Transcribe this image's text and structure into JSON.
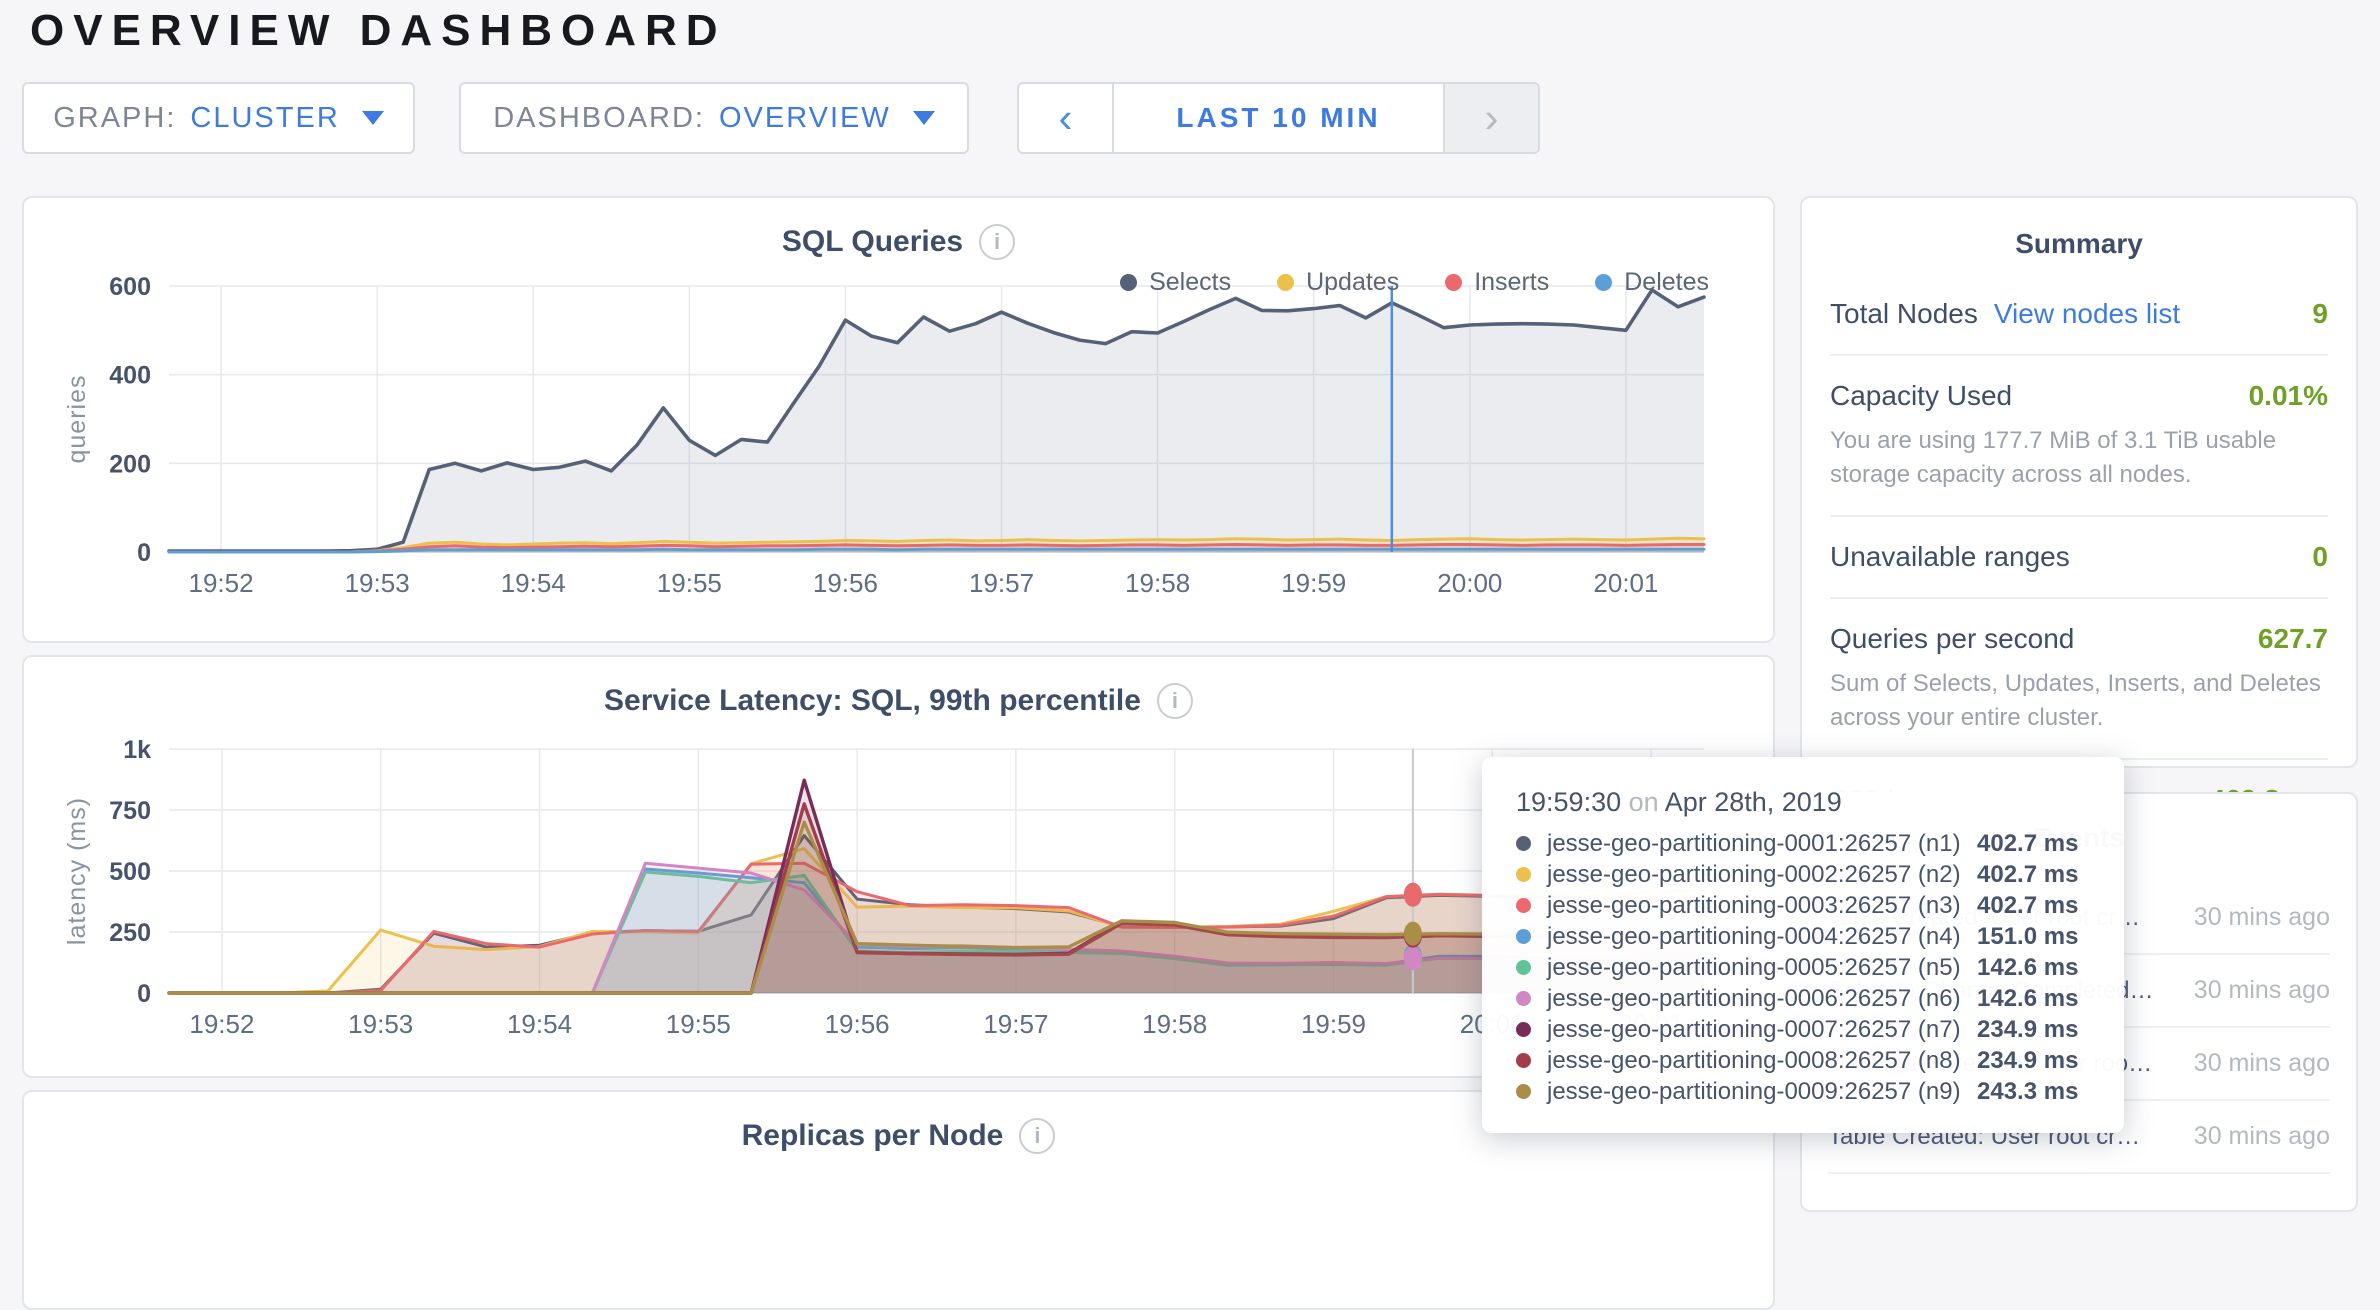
{
  "page": {
    "title": "OVERVIEW DASHBOARD"
  },
  "controls": {
    "graph": {
      "label": "GRAPH:",
      "value": "CLUSTER"
    },
    "dashboard": {
      "label": "DASHBOARD:",
      "value": "OVERVIEW"
    },
    "time_window": {
      "label": "LAST 10 MIN",
      "prev_icon": "‹",
      "next_icon": "›"
    }
  },
  "panels": {
    "sql_queries": {
      "title": "SQL Queries",
      "info_icon": "i",
      "legend": [
        {
          "label": "Selects",
          "color": "#566177"
        },
        {
          "label": "Updates",
          "color": "#ecc04c"
        },
        {
          "label": "Inserts",
          "color": "#e9696e"
        },
        {
          "label": "Deletes",
          "color": "#5c9fd6"
        }
      ]
    },
    "service_latency": {
      "title": "Service Latency: SQL, 99th percentile",
      "info_icon": "i"
    },
    "replicas": {
      "title": "Replicas per Node",
      "info_icon": "i"
    }
  },
  "summary": {
    "title": "Summary",
    "items": [
      {
        "label": "Total Nodes",
        "link": "View nodes list",
        "value": "9"
      },
      {
        "label": "Capacity Used",
        "value": "0.01%",
        "desc": "You are using 177.7 MiB of 3.1 TiB usable storage capacity across all nodes."
      },
      {
        "label": "Unavailable ranges",
        "value": "0"
      },
      {
        "label": "Queries per second",
        "value": "627.7",
        "desc": "Sum of Selects, Updates, Inserts, and Deletes across your entire cluster."
      },
      {
        "label": "P99 latency",
        "value": "469.8 ms"
      }
    ],
    "value_color": "#6ea126",
    "link_color": "#3d7be0"
  },
  "events": {
    "title": "Events",
    "items": [
      {
        "text": "Table Created: User root cr…",
        "time": "30 mins ago"
      },
      {
        "text": "Schema Change Completed…",
        "time": "30 mins ago"
      },
      {
        "text": "Database Created: User root …",
        "time": "30 mins ago"
      },
      {
        "text": "Table Created: User root cr…",
        "time": "30 mins ago"
      }
    ]
  },
  "tooltip": {
    "time": "19:59:30",
    "on": "on",
    "date": "Apr 28th, 2019",
    "rows": [
      {
        "name": "jesse-geo-partitioning-0001:26257 (n1)",
        "value": "402.7 ms",
        "color": "#566177"
      },
      {
        "name": "jesse-geo-partitioning-0002:26257 (n2)",
        "value": "402.7 ms",
        "color": "#ecc04c"
      },
      {
        "name": "jesse-geo-partitioning-0003:26257 (n3)",
        "value": "402.7 ms",
        "color": "#e9696e"
      },
      {
        "name": "jesse-geo-partitioning-0004:26257 (n4)",
        "value": "151.0 ms",
        "color": "#5c9fd6"
      },
      {
        "name": "jesse-geo-partitioning-0005:26257 (n5)",
        "value": "142.6 ms",
        "color": "#5fc598"
      },
      {
        "name": "jesse-geo-partitioning-0006:26257 (n6)",
        "value": "142.6 ms",
        "color": "#d386c4"
      },
      {
        "name": "jesse-geo-partitioning-0007:26257 (n7)",
        "value": "234.9 ms",
        "color": "#772d58"
      },
      {
        "name": "jesse-geo-partitioning-0008:26257 (n8)",
        "value": "234.9 ms",
        "color": "#a33d49"
      },
      {
        "name": "jesse-geo-partitioning-0009:26257 (n9)",
        "value": "243.3 ms",
        "color": "#a98d48"
      }
    ]
  },
  "chart_data": [
    {
      "type": "area",
      "title": "SQL Queries",
      "ylabel": "queries",
      "ymax": 600,
      "yticks": [
        {
          "v": 0,
          "label": "0"
        },
        {
          "v": 200,
          "label": "200"
        },
        {
          "v": 400,
          "label": "400"
        },
        {
          "v": 600,
          "label": "600"
        }
      ],
      "x_start": "19:51:40",
      "x_step_seconds": 10,
      "x_first_tick_offset": 20,
      "xticks": [
        "19:52",
        "19:53",
        "19:54",
        "19:55",
        "19:56",
        "19:57",
        "19:58",
        "19:59",
        "20:00",
        "20:01"
      ],
      "grid": true,
      "legend_position": "top-right",
      "hover": {
        "time": "19:59:30",
        "t": 470,
        "line_color": "#4a90e2",
        "line_width": 2.5
      },
      "series": [
        {
          "name": "Selects",
          "color": "#566177",
          "fill": "#8b98ae",
          "fill_opacity": 0.18,
          "width": 3.6,
          "values": [
            2,
            2,
            2,
            2,
            2,
            2,
            2,
            3,
            6,
            22,
            186,
            200,
            183,
            201,
            186,
            191,
            205,
            183,
            242,
            325,
            252,
            218,
            254,
            248,
            335,
            420,
            523,
            487,
            472,
            530,
            498,
            515,
            541,
            516,
            495,
            478,
            470,
            497,
            494,
            520,
            547,
            572,
            545,
            544,
            549,
            556,
            528,
            562,
            535,
            506,
            512,
            514,
            515,
            514,
            512,
            506,
            500,
            591,
            553,
            575
          ]
        },
        {
          "name": "Updates",
          "color": "#ecc04c",
          "fill": "#ecc04c",
          "fill_opacity": 0.18,
          "width": 3,
          "values": [
            0,
            0,
            0,
            0,
            0,
            0,
            0,
            0,
            3,
            10,
            20,
            22,
            18,
            16,
            18,
            20,
            21,
            19,
            21,
            24,
            22,
            20,
            21,
            22,
            23,
            24,
            26,
            25,
            24,
            26,
            27,
            25,
            26,
            28,
            26,
            25,
            26,
            27,
            28,
            27,
            28,
            30,
            29,
            27,
            28,
            29,
            27,
            26,
            28,
            29,
            30,
            28,
            27,
            28,
            29,
            28,
            27,
            29,
            31,
            30
          ]
        },
        {
          "name": "Inserts",
          "color": "#e9696e",
          "fill": "#e9696e",
          "fill_opacity": 0.15,
          "width": 3,
          "values": [
            0,
            0,
            0,
            0,
            0,
            0,
            0,
            0,
            2,
            6,
            12,
            14,
            11,
            10,
            11,
            12,
            13,
            12,
            13,
            15,
            14,
            12,
            13,
            14,
            14,
            15,
            16,
            15,
            14,
            15,
            16,
            15,
            15,
            16,
            15,
            14,
            15,
            16,
            16,
            15,
            16,
            17,
            16,
            15,
            16,
            16,
            15,
            15,
            16,
            17,
            17,
            16,
            15,
            16,
            16,
            16,
            15,
            16,
            17,
            17
          ]
        },
        {
          "name": "Deletes",
          "color": "#5c9fd6",
          "fill": "#5c9fd6",
          "fill_opacity": 0.12,
          "width": 3,
          "values": [
            0,
            0,
            0,
            0,
            0,
            0,
            0,
            0,
            1,
            3,
            5,
            5,
            5,
            5,
            5,
            5,
            5,
            5,
            5,
            6,
            5,
            5,
            5,
            5,
            5,
            6,
            6,
            6,
            5,
            6,
            6,
            6,
            6,
            6,
            6,
            6,
            6,
            6,
            6,
            6,
            6,
            6,
            6,
            6,
            6,
            6,
            6,
            6,
            6,
            6,
            6,
            6,
            6,
            6,
            6,
            6,
            6,
            6,
            6,
            6
          ]
        }
      ]
    },
    {
      "type": "area",
      "title": "Service Latency: SQL, 99th percentile",
      "ylabel": "latency (ms)",
      "ymax": 1000,
      "yticks": [
        {
          "v": 0,
          "label": "0"
        },
        {
          "v": 250,
          "label": "250"
        },
        {
          "v": 500,
          "label": "500"
        },
        {
          "v": 750,
          "label": "750"
        },
        {
          "v": 1000,
          "label": "1k"
        }
      ],
      "x_start": "19:51:40",
      "x_step_seconds": 20,
      "x_first_tick_offset": 20,
      "xticks": [
        "19:52",
        "19:53",
        "19:54",
        "19:55",
        "19:56",
        "19:57",
        "19:58",
        "19:59",
        "20:00",
        "20:01"
      ],
      "grid": true,
      "hover": {
        "time": "19:59:30",
        "t": 470,
        "line_color": "#c7cad1",
        "line_width": 2,
        "dots": [
          402.7,
          402.7,
          402.7,
          151.0,
          142.6,
          142.6,
          234.9,
          234.9,
          243.3
        ]
      },
      "series": [
        {
          "name": "jesse-geo-partitioning-0001:26257 (n1)",
          "color": "#566177",
          "fill": "#566177",
          "fill_opacity": 0.13,
          "width": 3,
          "values": [
            0,
            0,
            0,
            0,
            15,
            245,
            188,
            196,
            248,
            255,
            253,
            320,
            645,
            385,
            362,
            352,
            346,
            332,
            272,
            270,
            271,
            274,
            305,
            390,
            400,
            396,
            392,
            388,
            384,
            380
          ]
        },
        {
          "name": "jesse-geo-partitioning-0002:26257 (n2)",
          "color": "#ecc04c",
          "fill": "#ecc04c",
          "fill_opacity": 0.13,
          "width": 3,
          "values": [
            0,
            0,
            0,
            8,
            258,
            192,
            178,
            190,
            252,
            250,
            246,
            530,
            592,
            352,
            356,
            350,
            349,
            336,
            270,
            269,
            273,
            282,
            335,
            395,
            405,
            400,
            402,
            398,
            415,
            420
          ]
        },
        {
          "name": "jesse-geo-partitioning-0003:26257 (n3)",
          "color": "#e9696e",
          "fill": "#e9696e",
          "fill_opacity": 0.13,
          "width": 3,
          "values": [
            0,
            0,
            0,
            0,
            10,
            252,
            202,
            188,
            242,
            256,
            252,
            528,
            532,
            415,
            358,
            362,
            358,
            350,
            270,
            269,
            270,
            278,
            315,
            395,
            404,
            399,
            393,
            385,
            388,
            392
          ]
        },
        {
          "name": "jesse-geo-partitioning-0004:26257 (n4)",
          "color": "#5c9fd6",
          "fill": "#5c9fd6",
          "fill_opacity": 0.13,
          "width": 3,
          "values": [
            0,
            0,
            0,
            0,
            0,
            0,
            0,
            0,
            0,
            508,
            492,
            472,
            452,
            188,
            182,
            186,
            178,
            173,
            168,
            146,
            120,
            121,
            122,
            119,
            151,
            150,
            143,
            139,
            160,
            162
          ]
        },
        {
          "name": "jesse-geo-partitioning-0005:26257 (n5)",
          "color": "#5fc598",
          "fill": "#5fc598",
          "fill_opacity": 0.13,
          "width": 3,
          "values": [
            0,
            0,
            0,
            0,
            0,
            0,
            0,
            0,
            0,
            496,
            478,
            452,
            482,
            172,
            166,
            171,
            168,
            166,
            162,
            141,
            114,
            115,
            117,
            114,
            143,
            141,
            136,
            133,
            155,
            158
          ]
        },
        {
          "name": "jesse-geo-partitioning-0006:26257 (n6)",
          "color": "#d386c4",
          "fill": "#d386c4",
          "fill_opacity": 0.13,
          "width": 3,
          "values": [
            0,
            0,
            0,
            0,
            0,
            0,
            0,
            0,
            0,
            532,
            512,
            492,
            422,
            202,
            192,
            194,
            186,
            179,
            172,
            151,
            123,
            122,
            125,
            121,
            143,
            140,
            138,
            136,
            158,
            160
          ]
        },
        {
          "name": "jesse-geo-partitioning-0007:26257 (n7)",
          "color": "#772d58",
          "fill": "#772d58",
          "fill_opacity": 0.13,
          "width": 3.4,
          "values": [
            0,
            0,
            0,
            0,
            0,
            0,
            0,
            0,
            0,
            0,
            0,
            0,
            872,
            166,
            162,
            160,
            158,
            163,
            292,
            283,
            241,
            233,
            230,
            229,
            235,
            233,
            231,
            229,
            227,
            229
          ]
        },
        {
          "name": "jesse-geo-partitioning-0008:26257 (n8)",
          "color": "#a33d49",
          "fill": "#a33d49",
          "fill_opacity": 0.13,
          "width": 3.4,
          "values": [
            0,
            0,
            0,
            0,
            0,
            0,
            0,
            0,
            0,
            0,
            0,
            0,
            775,
            168,
            161,
            158,
            156,
            159,
            286,
            279,
            239,
            231,
            228,
            227,
            235,
            232,
            230,
            228,
            226,
            228
          ]
        },
        {
          "name": "jesse-geo-partitioning-0009:26257 (n9)",
          "color": "#a98d48",
          "fill": "#a98d48",
          "fill_opacity": 0.13,
          "width": 3.4,
          "values": [
            0,
            0,
            0,
            0,
            0,
            0,
            0,
            0,
            0,
            0,
            0,
            0,
            700,
            202,
            196,
            191,
            186,
            189,
            296,
            289,
            249,
            243,
            241,
            239,
            243,
            241,
            239,
            237,
            235,
            237
          ]
        }
      ]
    }
  ]
}
